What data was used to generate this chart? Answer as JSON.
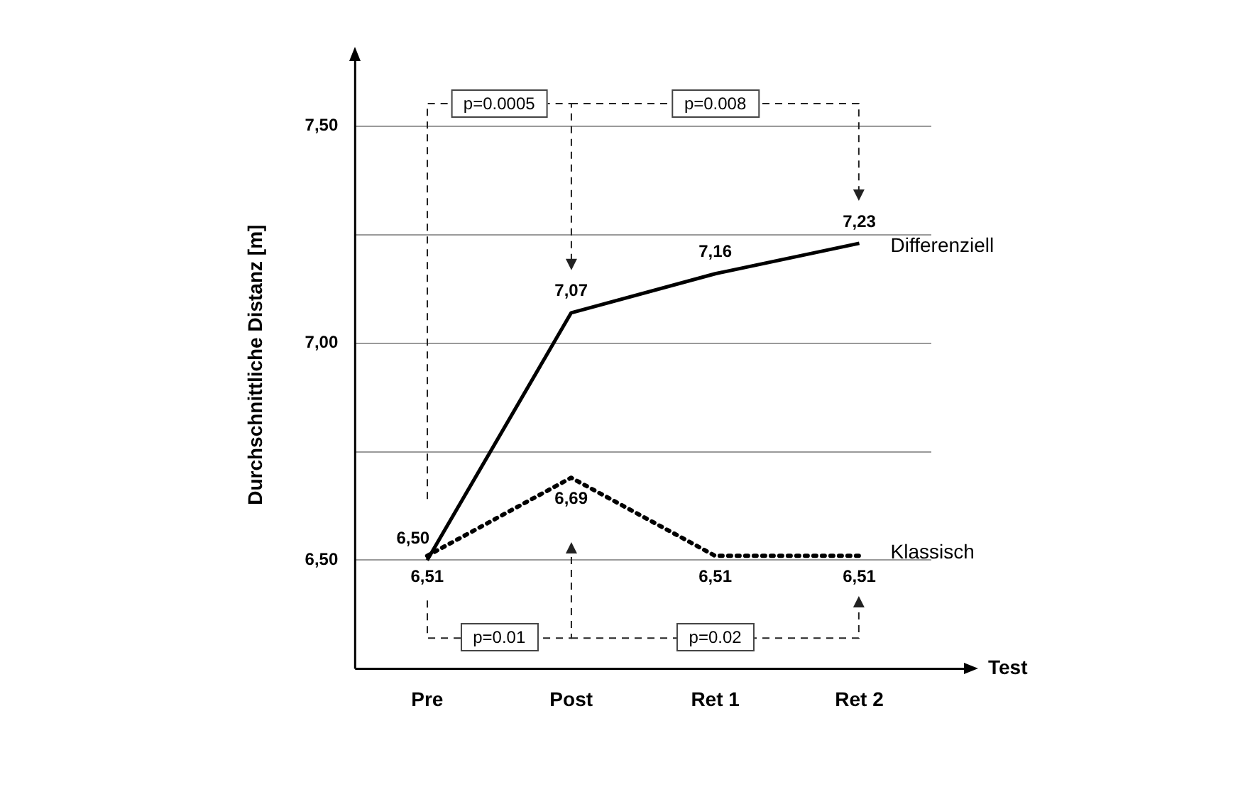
{
  "chart_data": {
    "type": "line",
    "xlabel": "Test",
    "ylabel": "Durchschnittliche Distanz [m]",
    "categories": [
      "Pre",
      "Post",
      "Ret 1",
      "Ret 2"
    ],
    "series": [
      {
        "name": "Differenziell",
        "color": "#000000",
        "line_style": "solid",
        "values": [
          6.5,
          7.07,
          7.16,
          7.23
        ],
        "value_labels": [
          "6,50",
          "7,07",
          "7,16",
          "7,23"
        ]
      },
      {
        "name": "Klassisch",
        "color": "#000000",
        "line_style": "dotted",
        "values": [
          6.51,
          6.69,
          6.51,
          6.51
        ],
        "value_labels": [
          "6,51",
          "6,69",
          "6,51",
          "6,51"
        ]
      }
    ],
    "ylim": [
      6.25,
      7.65
    ],
    "yticks": [
      {
        "value": 6.5,
        "label": "6,50"
      },
      {
        "value": 6.75,
        "label": null
      },
      {
        "value": 7.0,
        "label": "7,00"
      },
      {
        "value": 7.25,
        "label": null
      },
      {
        "value": 7.5,
        "label": "7,50"
      }
    ],
    "grid": "y",
    "legend": false,
    "marker": "none",
    "annotations": [
      "p=0.0005",
      "p=0.008",
      "p=0.01",
      "p=0.02"
    ]
  }
}
